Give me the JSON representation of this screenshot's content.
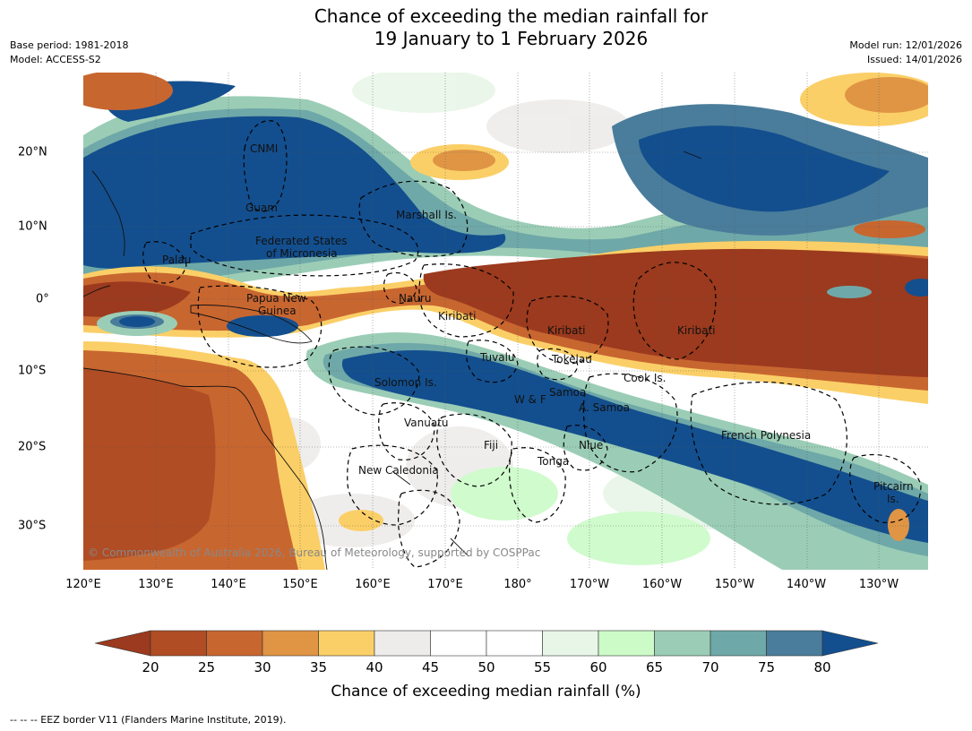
{
  "title_line1": "Chance of exceeding the median rainfall for",
  "title_line2": "19 January to 1 February 2026",
  "meta_left": {
    "base_period": "Base period: 1981-2018",
    "model": "Model: ACCESS-S2"
  },
  "meta_right": {
    "model_run": "Model run: 12/01/2026",
    "issued": "Issued: 14/01/2026"
  },
  "lon_labels": [
    "120°E",
    "130°E",
    "140°E",
    "150°E",
    "160°E",
    "170°E",
    "180°",
    "170°W",
    "160°W",
    "150°W",
    "140°W",
    "130°W"
  ],
  "lat_labels": [
    "20°N",
    "10°N",
    "0°",
    "10°S",
    "20°S",
    "30°S"
  ],
  "country_labels": {
    "cnmi": "CNMI",
    "guam": "Guam",
    "marshall": "Marshall Is.",
    "fsm1": "Federated States",
    "fsm2": "of Micronesia",
    "palau": "Palau",
    "png1": "Papua New",
    "png2": "Guinea",
    "nauru": "Nauru",
    "kiribati_w": "Kiribati",
    "kiribati_c": "Kiribati",
    "kiribati_e": "Kiribati",
    "tuvalu": "Tuvalu",
    "tokelau": "Tokelau",
    "cook": "Cook Is.",
    "solomon": "Solomon Is.",
    "wf": "W & F",
    "samoa": "Samoa",
    "asamoa": "A. Samoa",
    "vanuatu": "Vanuatu",
    "fiji": "Fiji",
    "niue": "Niue",
    "french_polynesia": "French Polynesia",
    "tonga": "Tonga",
    "new_caledonia": "New Caledonia",
    "pitcairn1": "Pitcairn",
    "pitcairn2": "Is."
  },
  "copyright": "© Commonwealth of Australia 2026, Bureau of Meteorology, supported by COSPPac",
  "colorbar": {
    "colors": [
      "#9b3a1e",
      "#b04d24",
      "#c86630",
      "#e09544",
      "#fbcf67",
      "#eeecea",
      "#ffffff",
      "#ffffff",
      "#e8f6e8",
      "#ccfbc8",
      "#9bcdb6",
      "#6fa8a8",
      "#4a7d9b",
      "#134f8e"
    ],
    "ticks": [
      "20",
      "25",
      "30",
      "35",
      "40",
      "45",
      "50",
      "55",
      "60",
      "65",
      "70",
      "75",
      "80"
    ],
    "title": "Chance of exceeding median rainfall (%)"
  },
  "footnote": "--  --  -- EEZ border V11 (Flanders Marine Institute, 2019)."
}
